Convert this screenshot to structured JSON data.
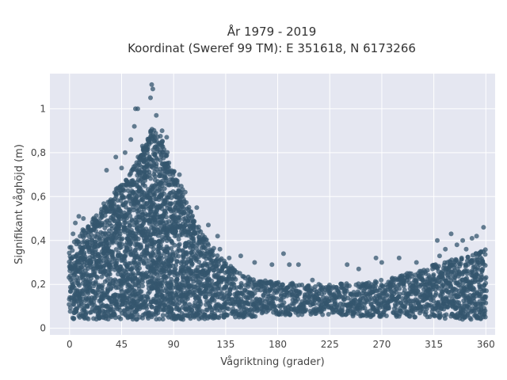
{
  "chart_data": {
    "type": "scatter",
    "title_line1": "År 1979 - 2019",
    "title_line2": "Koordinat (Sweref 99 TM): E 351618, N 6173266",
    "xlabel": "Vågriktning (grader)",
    "ylabel": "Signifikant våghöjd (m)",
    "xlim": [
      -17,
      368
    ],
    "ylim": [
      -0.03,
      1.16
    ],
    "xticks": [
      0,
      45,
      90,
      135,
      180,
      225,
      270,
      315,
      360
    ],
    "xtick_labels": [
      "0",
      "45",
      "90",
      "135",
      "180",
      "225",
      "270",
      "315",
      "360"
    ],
    "yticks": [
      0,
      0.2,
      0.4,
      0.6,
      0.8,
      1.0
    ],
    "ytick_labels": [
      "0",
      "0,2",
      "0,4",
      "0,6",
      "0,8",
      "1"
    ],
    "grid": true,
    "marker_color": "#34566e",
    "background_color": "#e5e7f1",
    "envelope": {
      "x": [
        0,
        10,
        20,
        30,
        45,
        55,
        65,
        72,
        80,
        90,
        100,
        110,
        120,
        135,
        150,
        180,
        225,
        270,
        300,
        315,
        330,
        345,
        360
      ],
      "upper": [
        0.37,
        0.44,
        0.5,
        0.57,
        0.66,
        0.74,
        0.84,
        0.93,
        0.86,
        0.72,
        0.6,
        0.48,
        0.4,
        0.3,
        0.24,
        0.21,
        0.2,
        0.22,
        0.26,
        0.29,
        0.31,
        0.33,
        0.36
      ],
      "lower": [
        0.04,
        0.04,
        0.04,
        0.04,
        0.04,
        0.04,
        0.04,
        0.04,
        0.04,
        0.04,
        0.04,
        0.04,
        0.04,
        0.05,
        0.05,
        0.06,
        0.06,
        0.05,
        0.05,
        0.05,
        0.04,
        0.04,
        0.04
      ]
    },
    "outliers": [
      {
        "x": 71,
        "y": 1.11
      },
      {
        "x": 72,
        "y": 1.09
      },
      {
        "x": 70,
        "y": 1.05
      },
      {
        "x": 57,
        "y": 1.0
      },
      {
        "x": 59,
        "y": 1.0
      },
      {
        "x": 56,
        "y": 0.92
      },
      {
        "x": 75,
        "y": 0.97
      },
      {
        "x": 80,
        "y": 0.9
      },
      {
        "x": 53,
        "y": 0.86
      },
      {
        "x": 84,
        "y": 0.87
      },
      {
        "x": 63,
        "y": 0.83
      },
      {
        "x": 48,
        "y": 0.8
      },
      {
        "x": 40,
        "y": 0.78
      },
      {
        "x": 32,
        "y": 0.72
      },
      {
        "x": 45,
        "y": 0.73
      },
      {
        "x": 95,
        "y": 0.7
      },
      {
        "x": 100,
        "y": 0.62
      },
      {
        "x": 110,
        "y": 0.55
      },
      {
        "x": 8,
        "y": 0.51
      },
      {
        "x": 12,
        "y": 0.5
      },
      {
        "x": 5,
        "y": 0.48
      },
      {
        "x": 3,
        "y": 0.43
      },
      {
        "x": 120,
        "y": 0.47
      },
      {
        "x": 128,
        "y": 0.42
      },
      {
        "x": 130,
        "y": 0.36
      },
      {
        "x": 138,
        "y": 0.32
      },
      {
        "x": 148,
        "y": 0.33
      },
      {
        "x": 160,
        "y": 0.3
      },
      {
        "x": 175,
        "y": 0.29
      },
      {
        "x": 185,
        "y": 0.34
      },
      {
        "x": 190,
        "y": 0.29
      },
      {
        "x": 198,
        "y": 0.29
      },
      {
        "x": 210,
        "y": 0.22
      },
      {
        "x": 240,
        "y": 0.29
      },
      {
        "x": 265,
        "y": 0.32
      },
      {
        "x": 270,
        "y": 0.3
      },
      {
        "x": 285,
        "y": 0.32
      },
      {
        "x": 300,
        "y": 0.3
      },
      {
        "x": 318,
        "y": 0.4
      },
      {
        "x": 325,
        "y": 0.36
      },
      {
        "x": 330,
        "y": 0.43
      },
      {
        "x": 335,
        "y": 0.38
      },
      {
        "x": 340,
        "y": 0.4
      },
      {
        "x": 348,
        "y": 0.41
      },
      {
        "x": 352,
        "y": 0.42
      },
      {
        "x": 358,
        "y": 0.46
      },
      {
        "x": 292,
        "y": 0.25
      },
      {
        "x": 250,
        "y": 0.27
      },
      {
        "x": 320,
        "y": 0.33
      },
      {
        "x": 343,
        "y": 0.36
      }
    ]
  }
}
